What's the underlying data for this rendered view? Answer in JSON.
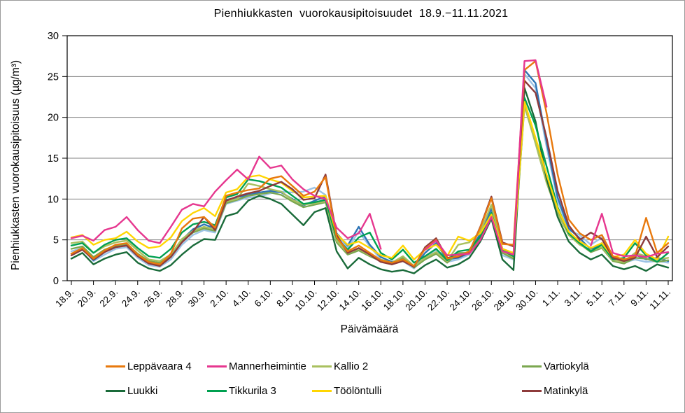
{
  "chart_data": {
    "type": "line",
    "title": "Pienhiukkasten vuorokausipitoisuudet 18.9.−11.11.2021",
    "xlabel": "Päivämäärä",
    "ylabel": "Pienhiukkasten vuorokausipitoisuus (µg/m³)",
    "ylim": [
      0,
      30
    ],
    "y_ticks": [
      0,
      5,
      10,
      15,
      20,
      25,
      30
    ],
    "x_tick_labels": [
      "18.9.",
      "20.9.",
      "22.9.",
      "24.9.",
      "26.9.",
      "28.9.",
      "30.9.",
      "2.10.",
      "4.10.",
      "6.10.",
      "8.10.",
      "10.10.",
      "12.10.",
      "14.10.",
      "16.10.",
      "18.10.",
      "20.10.",
      "22.10.",
      "24.10.",
      "26.10.",
      "28.10.",
      "30.10.",
      "1.11.",
      "3.11.",
      "5.11.",
      "7.11.",
      "9.11.",
      "11.11."
    ],
    "grid": "horizontal",
    "gridline_color": "#808080",
    "legend_position": "bottom",
    "x": [
      "18.9.",
      "19.9.",
      "20.9.",
      "21.9.",
      "22.9.",
      "23.9.",
      "24.9.",
      "25.9.",
      "26.9.",
      "27.9.",
      "28.9.",
      "29.9.",
      "30.9.",
      "1.10.",
      "2.10.",
      "3.10.",
      "4.10.",
      "5.10.",
      "6.10.",
      "7.10.",
      "8.10.",
      "9.10.",
      "10.10.",
      "11.10.",
      "12.10.",
      "13.10.",
      "14.10.",
      "15.10.",
      "16.10.",
      "17.10.",
      "18.10.",
      "19.10.",
      "20.10.",
      "21.10.",
      "22.10.",
      "23.10.",
      "24.10.",
      "25.10.",
      "26.10.",
      "27.10.",
      "28.10.",
      "29.10.",
      "30.10.",
      "31.10.",
      "1.11.",
      "2.11.",
      "3.11.",
      "4.11.",
      "5.11.",
      "6.11.",
      "7.11.",
      "8.11.",
      "9.11.",
      "10.11.",
      "11.11."
    ],
    "series": [
      {
        "id": "unlabeled-light-blue",
        "name": "unlabeled (light blue, not in legend)",
        "color": "#9CC3E5",
        "in_legend": false,
        "values": [
          3.6,
          4.0,
          2.4,
          3.2,
          3.9,
          4.1,
          2.8,
          1.9,
          1.7,
          2.6,
          4.4,
          5.6,
          6.2,
          5.9,
          9.4,
          9.8,
          10.2,
          10.3,
          10.7,
          10.9,
          10.8,
          10.9,
          11.4,
          10.5,
          5.5,
          4.0,
          6.0,
          4.2,
          2.6,
          2.1,
          2.4,
          1.5,
          2.9,
          3.8,
          2.3,
          2.6,
          3.2,
          5.5,
          8.5,
          3.1,
          2.6,
          25.3,
          23.6,
          16.4,
          9.8,
          6.2,
          5.6,
          4.4,
          5.3,
          2.7,
          2.2,
          2.6,
          2.3,
          2.4,
          2.2
        ]
      },
      {
        "id": "unlabeled-blue",
        "name": "unlabeled (blue, not in legend)",
        "color": "#2E75B6",
        "in_legend": false,
        "values": [
          3.3,
          3.9,
          2.5,
          3.5,
          4.2,
          4.4,
          3.1,
          2.2,
          1.9,
          3.0,
          5.0,
          6.3,
          6.9,
          6.4,
          9.9,
          10.2,
          10.5,
          10.8,
          11.0,
          10.8,
          10.0,
          9.2,
          9.8,
          10.3,
          5.8,
          4.3,
          6.6,
          4.4,
          2.9,
          2.3,
          2.7,
          1.7,
          3.4,
          4.6,
          2.6,
          2.8,
          3.4,
          5.8,
          8.8,
          3.9,
          3.3,
          25.8,
          24.2,
          17.0,
          10.2,
          6.4,
          5.2,
          3.8,
          4.6,
          2.9,
          2.5,
          3.2,
          2.6,
          2.8,
          2.4
        ]
      },
      {
        "id": "vartiokyla",
        "name": "Vartiokylä",
        "color": "#7BA74F",
        "in_legend": true,
        "values": [
          3.9,
          4.2,
          2.9,
          3.8,
          4.3,
          4.5,
          3.3,
          2.4,
          2.2,
          3.0,
          4.8,
          5.9,
          6.4,
          6.1,
          9.5,
          9.9,
          10.4,
          10.6,
          10.8,
          10.5,
          9.7,
          9.0,
          9.3,
          9.6,
          4.7,
          3.2,
          3.7,
          3.0,
          2.4,
          2.0,
          2.8,
          1.6,
          2.6,
          3.3,
          2.2,
          3.4,
          3.4,
          5.2,
          8.0,
          3.4,
          2.7,
          21.6,
          17.0,
          12.6,
          8.5,
          5.7,
          4.5,
          3.5,
          4.0,
          2.4,
          2.1,
          2.8,
          2.7,
          2.3,
          2.5
        ]
      },
      {
        "id": "kallio-2",
        "name": "Kallio 2",
        "color": "#A9C05F",
        "in_legend": true,
        "values": [
          4.6,
          4.8,
          3.4,
          4.2,
          4.7,
          4.9,
          3.7,
          2.6,
          2.4,
          3.2,
          5.1,
          6.1,
          6.6,
          6.3,
          9.7,
          10.0,
          11.9,
          11.6,
          11.2,
          10.9,
          9.9,
          9.3,
          9.5,
          9.7,
          4.9,
          3.4,
          3.9,
          3.1,
          2.6,
          2.2,
          3.0,
          1.8,
          2.8,
          3.5,
          2.4,
          4.4,
          4.7,
          6.0,
          9.3,
          3.6,
          2.9,
          21.4,
          16.8,
          12.0,
          8.2,
          5.6,
          4.4,
          3.7,
          4.1,
          2.5,
          2.3,
          3.4,
          3.0,
          2.6,
          2.8
        ]
      },
      {
        "id": "luukki",
        "name": "Luukki",
        "color": "#1A6B3A",
        "in_legend": true,
        "values": [
          2.7,
          3.4,
          2.0,
          2.7,
          3.2,
          3.5,
          2.2,
          1.5,
          1.2,
          1.9,
          3.2,
          4.3,
          5.1,
          5.0,
          7.9,
          8.3,
          9.8,
          10.4,
          10.0,
          9.4,
          8.1,
          6.8,
          8.4,
          8.9,
          3.6,
          1.5,
          2.8,
          2.0,
          1.4,
          1.1,
          1.3,
          0.9,
          1.9,
          2.6,
          1.6,
          2.0,
          2.8,
          4.8,
          7.6,
          2.6,
          1.3,
          23.6,
          19.5,
          12.5,
          7.8,
          4.8,
          3.4,
          2.6,
          3.2,
          1.8,
          1.4,
          1.8,
          1.2,
          2.0,
          1.6
        ]
      },
      {
        "id": "tikkurila-3",
        "name": "Tikkurila 3",
        "color": "#00A050",
        "in_legend": true,
        "values": [
          4.3,
          4.6,
          3.4,
          4.4,
          5.0,
          5.2,
          4.0,
          3.0,
          2.8,
          3.9,
          5.9,
          6.9,
          7.2,
          6.8,
          10.2,
          10.6,
          12.4,
          12.2,
          11.8,
          11.4,
          10.4,
          9.4,
          9.6,
          9.9,
          5.2,
          3.8,
          5.3,
          5.9,
          3.4,
          2.6,
          3.8,
          2.2,
          3.0,
          3.9,
          2.5,
          3.6,
          3.8,
          5.4,
          8.3,
          3.7,
          3.0,
          22.4,
          19.0,
          14.0,
          9.0,
          5.8,
          4.6,
          3.6,
          4.4,
          2.6,
          2.8,
          4.6,
          3.1,
          2.3,
          3.4
        ]
      },
      {
        "id": "toolontulli",
        "name": "Töölöntulli",
        "color": "#FFD602",
        "in_legend": true,
        "values": [
          5.3,
          5.6,
          4.4,
          5.0,
          5.2,
          6.0,
          4.8,
          4.0,
          4.2,
          5.3,
          7.3,
          8.3,
          8.9,
          7.9,
          10.8,
          11.2,
          12.7,
          12.9,
          12.4,
          12.0,
          11.0,
          10.2,
          10.3,
          10.4,
          5.7,
          4.4,
          4.8,
          4.0,
          3.1,
          2.8,
          4.3,
          2.6,
          3.8,
          4.4,
          3.0,
          5.4,
          4.9,
          5.8,
          8.1,
          3.9,
          3.4,
          21.9,
          17.5,
          13.0,
          8.8,
          6.0,
          4.8,
          4.0,
          4.6,
          2.9,
          3.2,
          5.0,
          3.3,
          2.6,
          5.4
        ]
      },
      {
        "id": "matinkyla",
        "name": "Matinkylä",
        "color": "#8E3B3B",
        "in_legend": true,
        "values": [
          3.1,
          3.8,
          2.6,
          3.5,
          4.1,
          4.3,
          3.0,
          2.1,
          1.8,
          2.9,
          4.7,
          6.0,
          7.8,
          6.2,
          9.8,
          10.3,
          10.7,
          11.0,
          11.6,
          12.1,
          11.2,
          9.9,
          10.1,
          13.0,
          5.6,
          3.4,
          4.0,
          3.2,
          2.3,
          2.0,
          2.4,
          1.7,
          4.1,
          5.2,
          2.8,
          2.9,
          3.5,
          6.6,
          10.3,
          4.7,
          4.2,
          24.5,
          23.0,
          17.5,
          11.0,
          6.8,
          5.0,
          5.9,
          5.1,
          2.8,
          2.4,
          2.8,
          5.4,
          2.9,
          4.2
        ]
      },
      {
        "id": "leppavaara-4",
        "name": "Leppävaara 4",
        "color": "#E8790D",
        "in_legend": true,
        "values": [
          3.3,
          4.0,
          2.7,
          3.7,
          4.4,
          4.6,
          3.2,
          2.3,
          2.0,
          3.3,
          6.4,
          7.6,
          7.8,
          6.5,
          10.4,
          10.8,
          11.1,
          11.3,
          12.5,
          12.8,
          11.6,
          10.4,
          10.9,
          12.7,
          5.3,
          3.6,
          4.3,
          3.4,
          2.5,
          2.2,
          2.6,
          1.8,
          3.9,
          5.0,
          2.7,
          3.0,
          3.6,
          6.5,
          10.1,
          4.5,
          4.4,
          25.8,
          26.9,
          20.5,
          13.0,
          7.5,
          5.8,
          5.0,
          5.6,
          3.0,
          2.6,
          3.0,
          7.7,
          3.4,
          4.6
        ]
      },
      {
        "id": "mannerheimintie",
        "name": "Mannerheimintie",
        "color": "#E6378F",
        "in_legend": true,
        "values": [
          5.2,
          5.5,
          4.9,
          6.2,
          6.6,
          7.8,
          6.2,
          4.9,
          4.6,
          6.6,
          8.7,
          9.4,
          9.1,
          10.9,
          12.3,
          13.6,
          12.4,
          15.2,
          13.8,
          14.1,
          12.4,
          11.2,
          10.4,
          10.0,
          6.5,
          5.2,
          5.8,
          8.2,
          3.9,
          null,
          null,
          null,
          3.8,
          4.9,
          3.1,
          3.2,
          3.3,
          5.0,
          7.8,
          3.6,
          3.2,
          26.9,
          27.0,
          21.3,
          null,
          null,
          null,
          4.3,
          8.2,
          3.4,
          3.0,
          3.1,
          2.9,
          3.3,
          3.5
        ]
      }
    ]
  },
  "legend": {
    "items": [
      {
        "label": "Leppävaara 4",
        "color": "#E8790D"
      },
      {
        "label": "Mannerheimintie",
        "color": "#E6378F"
      },
      {
        "label": "Kallio 2",
        "color": "#A9C05F"
      },
      {
        "label": "Vartiokylä",
        "color": "#7BA74F"
      },
      {
        "label": "Luukki",
        "color": "#1A6B3A"
      },
      {
        "label": "Tikkurila 3",
        "color": "#00A050"
      },
      {
        "label": "Töölöntulli",
        "color": "#FFD602"
      },
      {
        "label": "Matinkylä",
        "color": "#8E3B3B"
      }
    ]
  }
}
